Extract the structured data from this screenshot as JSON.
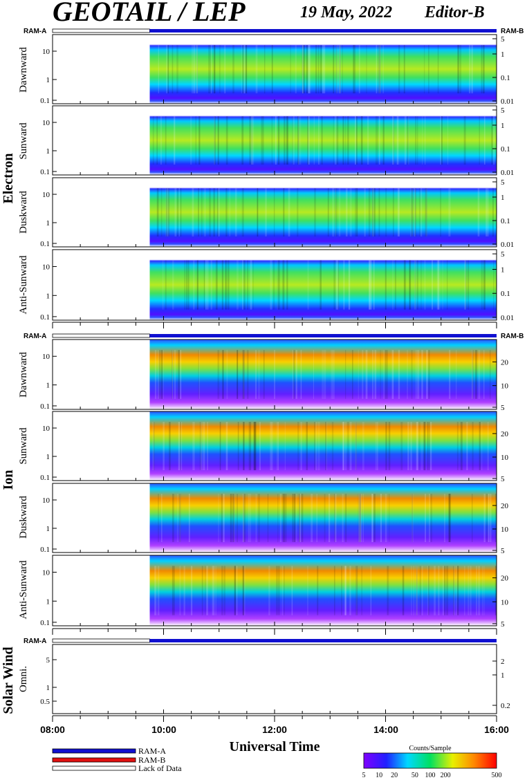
{
  "header": {
    "title": "GEOTAIL / LEP",
    "date": "19 May, 2022",
    "editor": "Editor-B"
  },
  "colors": {
    "ram_a": "#1010d0",
    "ram_b": "#e01010",
    "lack": "#ffffff"
  },
  "chart_data": {
    "type": "heatmap",
    "xlabel": "Universal Time",
    "x_ticks": [
      "08:00",
      "10:00",
      "12:00",
      "14:00",
      "16:00"
    ],
    "x_range_hours": [
      8,
      16
    ],
    "data_start_hour": 9.75,
    "groups": [
      {
        "name": "Electron",
        "ram_a_label": "RAM-A",
        "ram_b_label": "RAM-B",
        "panels": [
          {
            "ylabel": "Dawnward",
            "y_ticks": [
              "10",
              "1",
              "0.1"
            ],
            "right_ticks": [
              "5",
              "1",
              "0.1",
              "0.01"
            ]
          },
          {
            "ylabel": "Sunward",
            "y_ticks": [
              "10",
              "1",
              "0.1"
            ],
            "right_ticks": [
              "5",
              "1",
              "0.1",
              "0.01"
            ]
          },
          {
            "ylabel": "Duskward",
            "y_ticks": [
              "10",
              "1",
              "0.1"
            ],
            "right_ticks": [
              "5",
              "1",
              "0.1",
              "0.01"
            ]
          },
          {
            "ylabel": "Anti-Sunward",
            "y_ticks": [
              "10",
              "1",
              "0.1"
            ],
            "right_ticks": [
              "5",
              "1",
              "0.1",
              "0.01"
            ]
          }
        ]
      },
      {
        "name": "Ion",
        "ram_a_label": "RAM-A",
        "ram_b_label": "RAM-B",
        "panels": [
          {
            "ylabel": "Dawnward",
            "y_ticks": [
              "10",
              "1",
              "0.1"
            ],
            "right_ticks": [
              "20",
              "10",
              "5"
            ]
          },
          {
            "ylabel": "Sunward",
            "y_ticks": [
              "10",
              "1",
              "0.1"
            ],
            "right_ticks": [
              "20",
              "10",
              "5"
            ]
          },
          {
            "ylabel": "Duskward",
            "y_ticks": [
              "10",
              "1",
              "0.1"
            ],
            "right_ticks": [
              "20",
              "10",
              "5"
            ]
          },
          {
            "ylabel": "Anti-Sunward",
            "y_ticks": [
              "10",
              "1",
              "0.1"
            ],
            "right_ticks": [
              "20",
              "10",
              "5"
            ]
          }
        ]
      },
      {
        "name": "Solar Wind",
        "ram_a_label": "RAM-A",
        "ram_b_label": "",
        "panels": [
          {
            "ylabel": "Omni.",
            "y_ticks": [
              "5",
              "1",
              "0.5"
            ],
            "right_ticks": [
              "2",
              "1",
              "0.2"
            ]
          }
        ]
      }
    ],
    "legend": [
      {
        "label": "RAM-A",
        "color": "#1010d0"
      },
      {
        "label": "RAM-B",
        "color": "#e01010"
      },
      {
        "label": "Lack of Data",
        "color": "#ffffff"
      }
    ],
    "colorbar": {
      "title": "Counts/Sample",
      "ticks": [
        "5",
        "10",
        "20",
        "50",
        "100",
        "200",
        "500"
      ]
    }
  }
}
